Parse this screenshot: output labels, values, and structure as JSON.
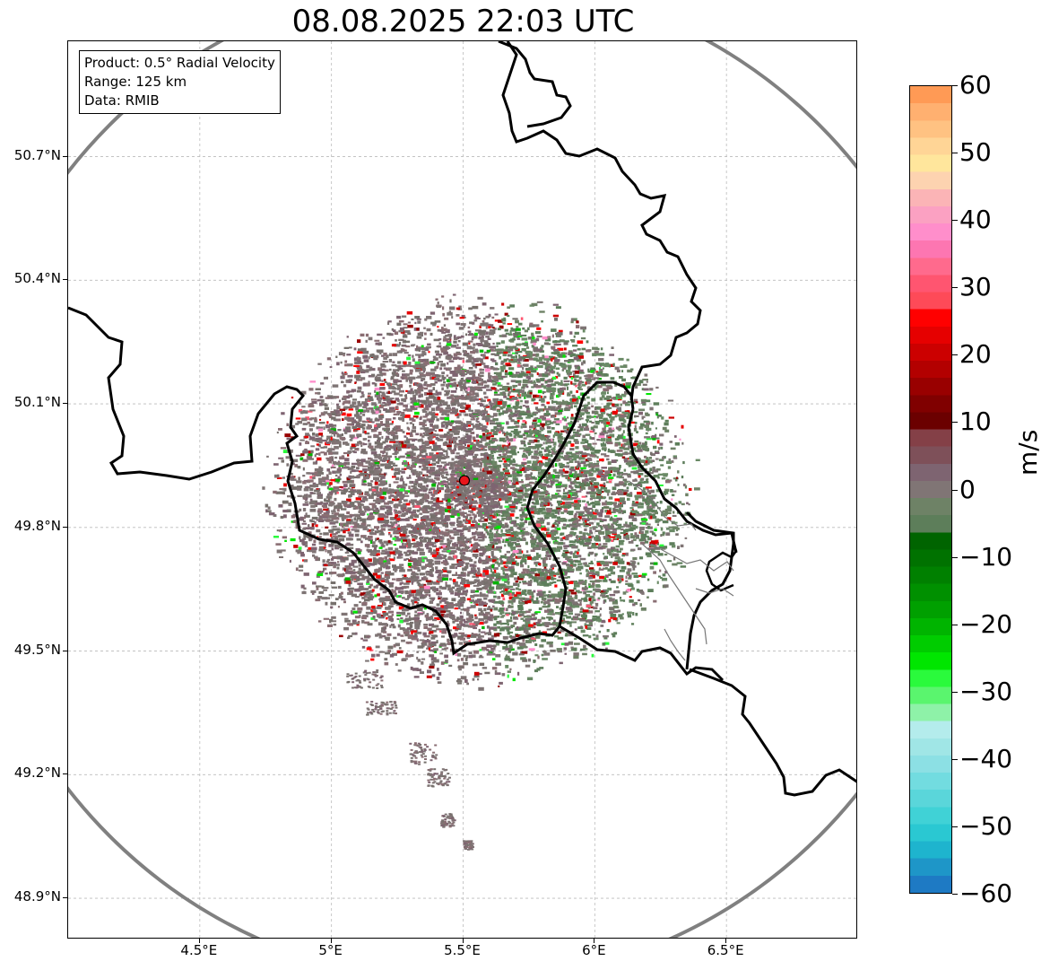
{
  "title": "08.08.2025 22:03 UTC",
  "info_box": {
    "product": "Product: 0.5° Radial Velocity",
    "range": "Range: 125 km",
    "data": "Data: RMIB"
  },
  "map": {
    "lon_range": [
      4.0,
      7.0
    ],
    "lat_range": [
      48.8,
      50.98
    ],
    "radar_site": {
      "lon": 5.505,
      "lat": 49.914
    },
    "lat_ticks": [
      {
        "value": 50.7,
        "label": "50.7°N"
      },
      {
        "value": 50.4,
        "label": "50.4°N"
      },
      {
        "value": 50.1,
        "label": "50.1°N"
      },
      {
        "value": 49.8,
        "label": "49.8°N"
      },
      {
        "value": 49.5,
        "label": "49.5°N"
      },
      {
        "value": 49.2,
        "label": "49.2°N"
      },
      {
        "value": 48.9,
        "label": "48.9°N"
      }
    ],
    "lon_ticks": [
      {
        "value": 4.5,
        "label": "4.5°E"
      },
      {
        "value": 5.0,
        "label": "5°E"
      },
      {
        "value": 5.5,
        "label": "5.5°E"
      },
      {
        "value": 6.0,
        "label": "6°E"
      },
      {
        "value": 6.5,
        "label": "6.5°E"
      }
    ],
    "colors": {
      "range_ring": "#808080",
      "border": "#000000",
      "grid": "#bbbbbb",
      "radar_marker": "#e8161b",
      "echo_base": "#7e7474",
      "echo_inbound": "#5e7e5c"
    }
  },
  "colorbar": {
    "unit": "m/s",
    "min": -60,
    "max": 60,
    "ticks": [
      {
        "value": 60,
        "label": "60"
      },
      {
        "value": 50,
        "label": "50"
      },
      {
        "value": 40,
        "label": "40"
      },
      {
        "value": 30,
        "label": "30"
      },
      {
        "value": 20,
        "label": "20"
      },
      {
        "value": 10,
        "label": "10"
      },
      {
        "value": 0,
        "label": "0"
      },
      {
        "value": -10,
        "label": "−10"
      },
      {
        "value": -20,
        "label": "−20"
      },
      {
        "value": -30,
        "label": "−30"
      },
      {
        "value": -40,
        "label": "−40"
      },
      {
        "value": -50,
        "label": "−50"
      },
      {
        "value": -60,
        "label": "−60"
      }
    ],
    "bands_top_to_bottom": [
      "#ff9a55",
      "#ffb070",
      "#ffc282",
      "#ffd596",
      "#ffe69c",
      "#fdd3b0",
      "#fbb4b6",
      "#fba1c2",
      "#ff8ecb",
      "#fd76b1",
      "#ff6a8d",
      "#ff5570",
      "#fe4a58",
      "#ff0000",
      "#e60000",
      "#cc0000",
      "#b30000",
      "#990000",
      "#800000",
      "#6b0000",
      "#844047",
      "#7e5059",
      "#7e6471",
      "#807575",
      "#6e8266",
      "#5d7e5a",
      "#006400",
      "#007200",
      "#008000",
      "#009000",
      "#00a000",
      "#00b400",
      "#00cc00",
      "#00e600",
      "#2afa3c",
      "#5af56e",
      "#8ef2a8",
      "#b4ecec",
      "#a0e6e6",
      "#8ce0e4",
      "#72dce0",
      "#5ad6da",
      "#40d2d6",
      "#2ac8d2",
      "#1eb4ce",
      "#1e96c8",
      "#1e7ac4"
    ]
  }
}
